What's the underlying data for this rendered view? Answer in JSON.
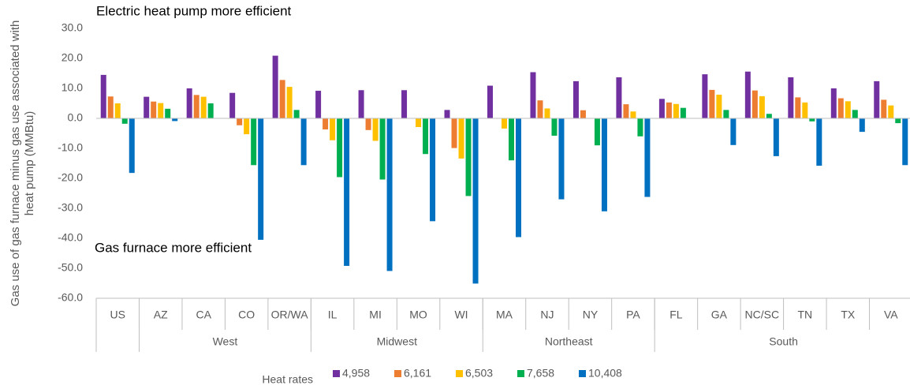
{
  "chart_data": {
    "type": "bar",
    "annotations": [
      "Electric heat pump more efficient",
      "Gas furnace more efficient"
    ],
    "y_label": [
      "Gas use of gas furnace minus gas use associated with",
      "heat pump (MMBtu)"
    ],
    "legend_title": "Heat rates",
    "categories": [
      "US",
      "AZ",
      "CA",
      "CO",
      "OR/WA",
      "IL",
      "MI",
      "MO",
      "WI",
      "MA",
      "NJ",
      "NY",
      "PA",
      "FL",
      "GA",
      "NC/SC",
      "TN",
      "TX",
      "VA"
    ],
    "groups": [
      {
        "name": null,
        "count": 1
      },
      {
        "name": "West",
        "count": 4
      },
      {
        "name": "Midwest",
        "count": 4
      },
      {
        "name": "Northeast",
        "count": 4
      },
      {
        "name": "South",
        "count": 6
      }
    ],
    "series": [
      {
        "name": "4,958",
        "color": "#7030a0",
        "values": [
          14.5,
          7.2,
          10.0,
          8.5,
          20.9,
          9.2,
          9.4,
          9.4,
          2.8,
          10.9,
          15.4,
          12.4,
          13.7,
          6.5,
          14.7,
          15.6,
          13.7,
          10.0,
          12.4
        ]
      },
      {
        "name": "6,161",
        "color": "#ed7d31",
        "values": [
          7.3,
          5.6,
          7.8,
          -2.3,
          12.8,
          -3.7,
          -3.9,
          0,
          -9.9,
          0,
          6.0,
          2.7,
          4.7,
          5.3,
          9.5,
          9.3,
          7.0,
          6.7,
          6.2
        ]
      },
      {
        "name": "6,503",
        "color": "#ffc000",
        "values": [
          5.0,
          5.1,
          7.2,
          -5.3,
          10.5,
          -7.3,
          -7.5,
          -2.9,
          -13.4,
          -3.4,
          3.3,
          0,
          2.3,
          4.8,
          7.9,
          7.4,
          5.3,
          5.7,
          4.3
        ]
      },
      {
        "name": "7,658",
        "color": "#00b050",
        "values": [
          -1.8,
          3.2,
          5.0,
          -15.6,
          2.8,
          -19.6,
          -20.4,
          -11.9,
          -25.9,
          -14.0,
          -5.8,
          -9.0,
          -6.0,
          3.5,
          2.8,
          1.5,
          -1.0,
          2.8,
          -1.6
        ]
      },
      {
        "name": "10,408",
        "color": "#0070c0",
        "values": [
          -18.2,
          -0.9,
          0,
          -40.5,
          -15.6,
          -49.2,
          -50.9,
          -34.3,
          -55.1,
          -39.6,
          -27.0,
          -31.0,
          -26.2,
          0,
          -8.9,
          -12.6,
          -15.8,
          -4.5,
          -15.6
        ]
      }
    ],
    "ylim": [
      -60,
      30
    ],
    "yticks": [
      {
        "value": -60,
        "label": "-60.0"
      },
      {
        "value": -50,
        "label": "-50.0"
      },
      {
        "value": -40,
        "label": "-40.0"
      },
      {
        "value": -30,
        "label": "-30.0"
      },
      {
        "value": -20,
        "label": "-20.0"
      },
      {
        "value": -10,
        "label": "-10.0"
      },
      {
        "value": 0,
        "label": "0.0"
      },
      {
        "value": 10,
        "label": "10.0"
      },
      {
        "value": 20,
        "label": "20.0"
      },
      {
        "value": 30,
        "label": "30.0"
      }
    ],
    "grid": false
  }
}
